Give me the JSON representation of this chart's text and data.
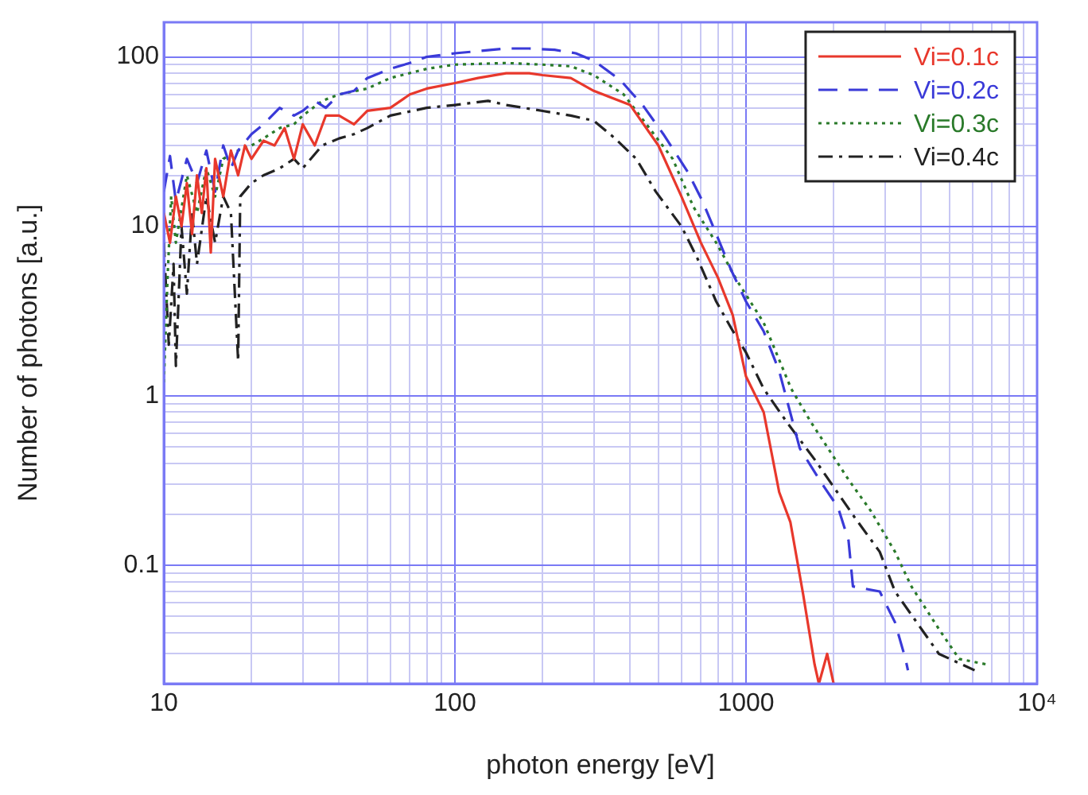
{
  "chart_data": {
    "type": "line",
    "xlabel": "photon energy [eV]",
    "ylabel": "Number of photons [a.u.]",
    "log": "xy",
    "grid": true,
    "legend": "top right",
    "xlim": [
      10,
      10000
    ],
    "ylim": [
      0.02,
      160
    ],
    "xticks": [
      10,
      {
        "value": 20,
        "label": null
      },
      {
        "value": 30,
        "label": null
      },
      {
        "value": 40,
        "label": null
      },
      {
        "value": 50,
        "label": null
      },
      {
        "value": 60,
        "label": null
      },
      {
        "value": 70,
        "label": null
      },
      {
        "value": 80,
        "label": null
      },
      {
        "value": 90,
        "label": null
      },
      100,
      {
        "value": 200,
        "label": null
      },
      {
        "value": 300,
        "label": null
      },
      {
        "value": 400,
        "label": null
      },
      {
        "value": 500,
        "label": null
      },
      {
        "value": 600,
        "label": null
      },
      {
        "value": 700,
        "label": null
      },
      {
        "value": 800,
        "label": null
      },
      {
        "value": 900,
        "label": null
      },
      1000,
      {
        "value": 2000,
        "label": null
      },
      {
        "value": 3000,
        "label": null
      },
      {
        "value": 4000,
        "label": null
      },
      {
        "value": 5000,
        "label": null
      },
      {
        "value": 6000,
        "label": null
      },
      {
        "value": 7000,
        "label": null
      },
      {
        "value": 8000,
        "label": null
      },
      {
        "value": 9000,
        "label": null
      },
      {
        "value": 10000,
        "label": "10⁴"
      }
    ],
    "yticks": [
      {
        "value": 0.02,
        "label": null
      },
      {
        "value": 0.03,
        "label": null
      },
      {
        "value": 0.04,
        "label": null
      },
      {
        "value": 0.05,
        "label": null
      },
      {
        "value": 0.06,
        "label": null
      },
      {
        "value": 0.07,
        "label": null
      },
      {
        "value": 0.08,
        "label": null
      },
      {
        "value": 0.09,
        "label": null
      },
      0.1,
      {
        "value": 0.2,
        "label": null
      },
      {
        "value": 0.3,
        "label": null
      },
      {
        "value": 0.4,
        "label": null
      },
      {
        "value": 0.5,
        "label": null
      },
      {
        "value": 0.6,
        "label": null
      },
      {
        "value": 0.7,
        "label": null
      },
      {
        "value": 0.8,
        "label": null
      },
      {
        "value": 0.9,
        "label": null
      },
      1,
      {
        "value": 2,
        "label": null
      },
      {
        "value": 3,
        "label": null
      },
      {
        "value": 4,
        "label": null
      },
      {
        "value": 5,
        "label": null
      },
      {
        "value": 6,
        "label": null
      },
      {
        "value": 7,
        "label": null
      },
      {
        "value": 8,
        "label": null
      },
      {
        "value": 9,
        "label": null
      },
      10,
      {
        "value": 20,
        "label": null
      },
      {
        "value": 30,
        "label": null
      },
      {
        "value": 40,
        "label": null
      },
      {
        "value": 50,
        "label": null
      },
      {
        "value": 60,
        "label": null
      },
      {
        "value": 70,
        "label": null
      },
      {
        "value": 80,
        "label": null
      },
      {
        "value": 90,
        "label": null
      },
      100
    ],
    "series": [
      {
        "name": "Vi=0.1c",
        "color": "#e8382c",
        "line_style": "solid",
        "x": [
          10,
          10.5,
          11,
          11.5,
          12,
          12.5,
          13,
          13.5,
          14,
          14.5,
          15,
          16,
          17,
          18,
          19,
          20,
          22,
          24,
          26,
          28,
          30,
          33,
          36,
          40,
          45,
          50,
          60,
          70,
          80,
          100,
          120,
          150,
          180,
          200,
          250,
          300,
          400,
          500,
          600,
          700,
          800,
          900,
          1000,
          1150,
          1300,
          1420,
          1570,
          1720,
          1780,
          1900,
          2000
        ],
        "values": [
          12,
          8,
          15,
          10,
          18,
          9,
          20,
          12,
          22,
          7,
          25,
          15,
          28,
          20,
          30,
          25,
          32,
          30,
          38,
          25,
          40,
          30,
          45,
          45,
          40,
          48,
          50,
          60,
          65,
          70,
          75,
          80,
          80,
          78,
          75,
          63,
          52,
          30,
          15,
          8,
          5,
          3,
          1.3,
          0.8,
          0.27,
          0.18,
          0.068,
          0.026,
          0.02,
          0.03,
          0.02
        ]
      },
      {
        "name": "Vi=0.2c",
        "color": "#3a3ad8",
        "line_style": "dashed",
        "x": [
          10,
          10.5,
          11,
          12,
          13,
          14,
          15,
          16,
          17,
          18,
          20,
          22,
          25,
          28,
          30,
          33,
          36,
          40,
          45,
          50,
          60,
          70,
          80,
          100,
          120,
          150,
          180,
          220,
          260,
          300,
          370,
          445,
          520,
          630,
          710,
          790,
          890,
          1000,
          1150,
          1300,
          1530,
          1830,
          2070,
          2250,
          2330,
          2880,
          3250,
          3530,
          3600
        ],
        "values": [
          16,
          26,
          14,
          25,
          18,
          28,
          16,
          30,
          22,
          28,
          35,
          40,
          50,
          45,
          48,
          55,
          50,
          60,
          63,
          75,
          85,
          92,
          100,
          105,
          108,
          112,
          112,
          110,
          105,
          95,
          73,
          51,
          35,
          21,
          14,
          9,
          5.5,
          3.6,
          2.4,
          1.4,
          0.49,
          0.3,
          0.22,
          0.14,
          0.075,
          0.07,
          0.046,
          0.028,
          0.024
        ]
      },
      {
        "name": "Vi=0.3c",
        "color": "#2a7a2a",
        "line_style": "dotted",
        "x": [
          10,
          10.3,
          10.6,
          11,
          12,
          13,
          14,
          15,
          16,
          18,
          20,
          22,
          25,
          28,
          30,
          35,
          40,
          50,
          60,
          80,
          100,
          150,
          200,
          250,
          300,
          380,
          560,
          660,
          790,
          930,
          1150,
          1430,
          1670,
          2250,
          2680,
          3250,
          3700,
          4600,
          5400,
          6700
        ],
        "values": [
          1.2,
          5,
          15,
          8,
          20,
          12,
          22,
          15,
          25,
          28,
          30,
          33,
          38,
          40,
          45,
          55,
          60,
          65,
          75,
          85,
          90,
          92,
          90,
          88,
          78,
          60,
          25,
          13,
          8,
          4.8,
          2.7,
          1.1,
          0.7,
          0.32,
          0.21,
          0.12,
          0.075,
          0.042,
          0.028,
          0.026
        ]
      },
      {
        "name": "Vi=0.4c",
        "color": "#222222",
        "line_style": "dashdot",
        "x": [
          10,
          10.4,
          10.8,
          11,
          11.5,
          12,
          12.5,
          13,
          14,
          15,
          16,
          17,
          18,
          18.3,
          20,
          22,
          25,
          28,
          30,
          35,
          40,
          45,
          50,
          60,
          80,
          100,
          130,
          150,
          200,
          250,
          300,
          355,
          420,
          490,
          600,
          680,
          790,
          890,
          1000,
          1150,
          1380,
          1740,
          2370,
          2880,
          3250,
          4600,
          6100
        ],
        "values": [
          8,
          2,
          6,
          1.5,
          10,
          4,
          12,
          6,
          15,
          8,
          15,
          12,
          1.6,
          15,
          18,
          20,
          22,
          25,
          22,
          30,
          33,
          35,
          38,
          45,
          50,
          52,
          55,
          52,
          48,
          45,
          42,
          33,
          25,
          16,
          10,
          6.5,
          3.6,
          2.5,
          1.8,
          1.1,
          0.7,
          0.41,
          0.19,
          0.12,
          0.07,
          0.03,
          0.024
        ]
      }
    ]
  }
}
